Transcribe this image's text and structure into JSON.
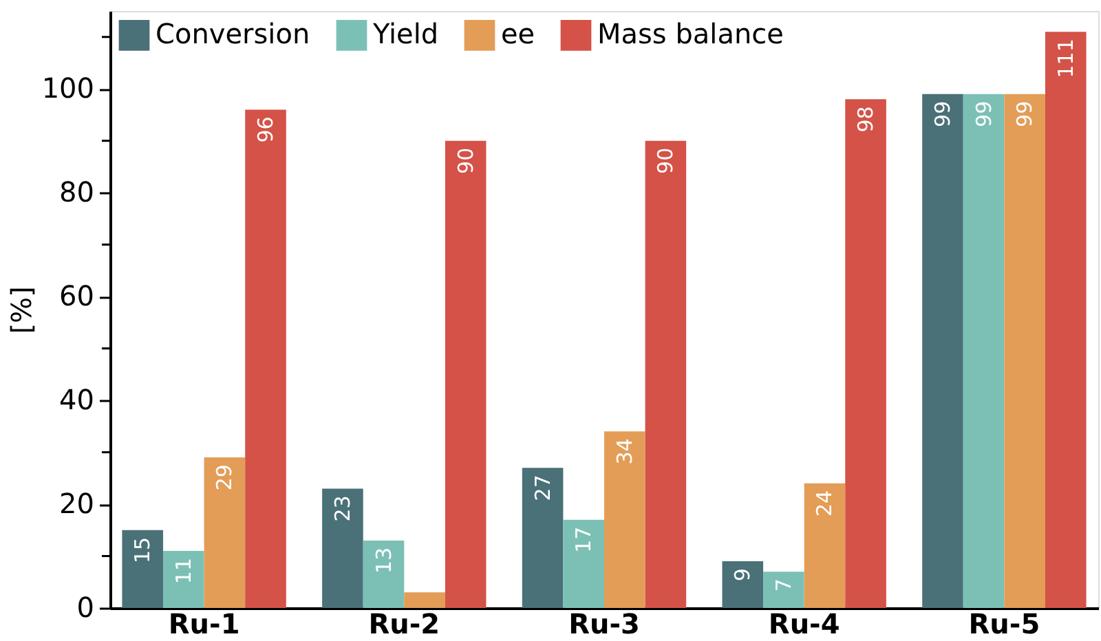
{
  "chart_data": {
    "type": "bar",
    "ylabel": "[%]",
    "categories": [
      "Ru-1",
      "Ru-2",
      "Ru-3",
      "Ru-4",
      "Ru-5"
    ],
    "series": [
      {
        "name": "Conversion",
        "color": "#4a7078",
        "values": [
          15,
          23,
          27,
          9,
          99
        ],
        "value_labels": [
          "15",
          "23",
          "27",
          "9",
          "99"
        ]
      },
      {
        "name": "Yield",
        "color": "#7cc0b5",
        "values": [
          11,
          13,
          17,
          7,
          99
        ],
        "value_labels": [
          "11",
          "13",
          "17",
          "7",
          "99"
        ]
      },
      {
        "name": "ee",
        "color": "#e39d57",
        "values": [
          29,
          3,
          34,
          24,
          99
        ],
        "value_labels": [
          "29",
          null,
          "34",
          "24",
          "99"
        ]
      },
      {
        "name": "Mass balance",
        "color": "#d45247",
        "values": [
          96,
          90,
          90,
          98,
          111
        ],
        "value_labels": [
          "96",
          "90",
          "90",
          "98",
          "111"
        ]
      }
    ],
    "ylim": [
      0,
      115
    ],
    "yticks": [
      0,
      {
        "value": 10,
        "label": null
      },
      20,
      {
        "value": 30,
        "label": null
      },
      40,
      {
        "value": 50,
        "label": null
      },
      60,
      {
        "value": 70,
        "label": null
      },
      80,
      {
        "value": 90,
        "label": null
      },
      100,
      {
        "value": 110,
        "label": null
      }
    ],
    "legend": "top left",
    "grid": false
  }
}
